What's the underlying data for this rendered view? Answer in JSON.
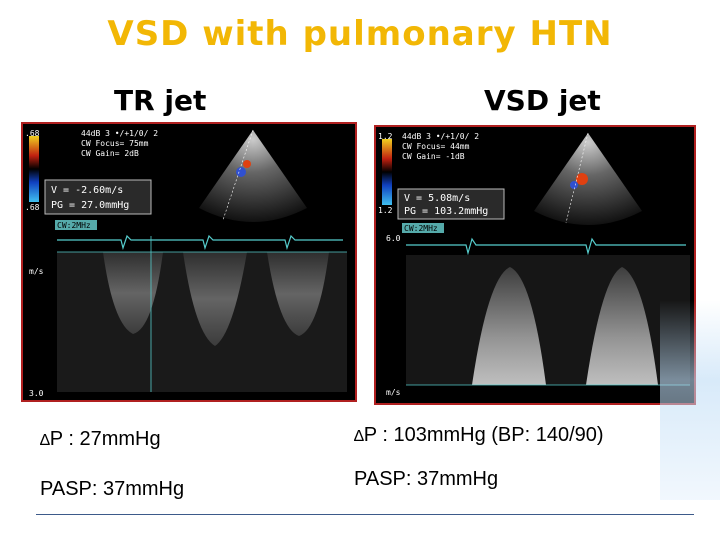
{
  "title": "VSD with pulmonary HTN",
  "left": {
    "label": "TR jet",
    "echo": {
      "scale_top": ".68",
      "scale_bottom": ".68",
      "settings": [
        "44dB  3 •/+1/0/ 2",
        "CW Focus=  75mm",
        "CW Gain=   2dB"
      ],
      "readout": [
        "V = -2.60m/s",
        "PG = 27.0mmHg"
      ],
      "probe": "CW:2MHz",
      "unit": "m/s",
      "depth": "3.0"
    },
    "pressure": "P : 27mmHg",
    "pasp": "PASP: 37mmHg"
  },
  "right": {
    "label": "VSD jet",
    "echo": {
      "scale_top": "1.2",
      "scale_bottom": "1.2",
      "settings": [
        "44dB  3 •/+1/0/ 2",
        "CW Focus=  44mm",
        "CW Gain=  -1dB"
      ],
      "readout": [
        "V = 5.08m/s",
        "PG = 103.2mmHg"
      ],
      "probe": "CW:2MHz",
      "depth": "6.0",
      "unit": "m/s"
    },
    "pressure": "P : 103mmHg (BP: 140/90)",
    "pasp": "PASP: 37mmHg"
  },
  "delta_symbol": "∆"
}
